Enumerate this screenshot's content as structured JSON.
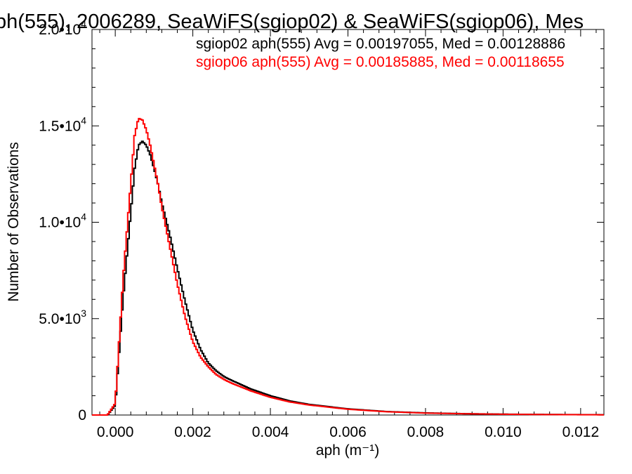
{
  "chart_data": {
    "type": "line",
    "title": "ph(555), 2006289, SeaWiFS(sgiop02) & SeaWiFS(sgiop06), Mes",
    "xlabel": "aph (m⁻¹)",
    "ylabel": "Number of Observations",
    "xlim": [
      -0.0006,
      0.0126
    ],
    "ylim": [
      0,
      20000
    ],
    "x_ticks": [
      0.0,
      0.002,
      0.004,
      0.006,
      0.008,
      0.01,
      0.012
    ],
    "x_tick_labels": [
      "0.000",
      "0.002",
      "0.004",
      "0.006",
      "0.008",
      "0.010",
      "0.012"
    ],
    "y_ticks": [
      0,
      5000,
      10000,
      15000,
      20000
    ],
    "y_tick_labels": [
      {
        "mantissa": "0",
        "exp": ""
      },
      {
        "mantissa": "5.0•10",
        "exp": "3"
      },
      {
        "mantissa": "1.0•10",
        "exp": "4"
      },
      {
        "mantissa": "1.5•10",
        "exp": "4"
      },
      {
        "mantissa": "2.0•10",
        "exp": "4"
      }
    ],
    "grid": false,
    "legend_position": "top-right",
    "series": [
      {
        "name": "sgiop02 aph(555) Avg = 0.00197055, Med = 0.00128886",
        "color": "#000000",
        "x": [
          -0.0006,
          -0.0002,
          0.0,
          0.0002,
          0.0004,
          0.0005,
          0.0006,
          0.0007,
          0.0008,
          0.0009,
          0.001,
          0.0011,
          0.0012,
          0.0014,
          0.0016,
          0.0018,
          0.002,
          0.0022,
          0.0024,
          0.0026,
          0.0028,
          0.003,
          0.0035,
          0.004,
          0.0045,
          0.005,
          0.006,
          0.007,
          0.008,
          0.009,
          0.01,
          0.011,
          0.012,
          0.0126
        ],
        "y": [
          0,
          0,
          500,
          6000,
          10500,
          12800,
          14000,
          14200,
          14000,
          13500,
          12800,
          12000,
          11000,
          9400,
          7600,
          5900,
          4400,
          3400,
          2700,
          2300,
          2000,
          1800,
          1350,
          1000,
          730,
          550,
          320,
          180,
          110,
          70,
          45,
          30,
          20,
          15
        ]
      },
      {
        "name": "sgiop06 aph(555) Avg = 0.00185885, Med = 0.00118655",
        "color": "#ff0000",
        "x": [
          -0.0006,
          -0.0002,
          0.0,
          0.0002,
          0.0004,
          0.0005,
          0.0006,
          0.0007,
          0.0008,
          0.0009,
          0.001,
          0.0011,
          0.0012,
          0.0014,
          0.0016,
          0.0018,
          0.002,
          0.0022,
          0.0024,
          0.0026,
          0.0028,
          0.003,
          0.0035,
          0.004,
          0.0045,
          0.005,
          0.006,
          0.007,
          0.008,
          0.009,
          0.01,
          0.011,
          0.012,
          0.0126
        ],
        "y": [
          0,
          0,
          600,
          7000,
          12000,
          14500,
          15400,
          15300,
          14800,
          14000,
          13000,
          12000,
          10800,
          8800,
          6800,
          5100,
          3800,
          3000,
          2500,
          2100,
          1850,
          1650,
          1250,
          920,
          680,
          520,
          300,
          170,
          100,
          65,
          40,
          25,
          15,
          10
        ]
      }
    ]
  }
}
